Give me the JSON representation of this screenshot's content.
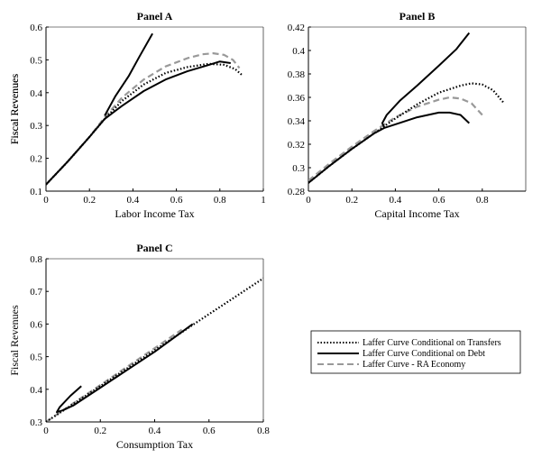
{
  "legend": [
    {
      "label": "Laffer Curve Conditional on Transfers",
      "style": "dotted",
      "color": "#000000"
    },
    {
      "label": "Laffer Curve Conditional on Debt",
      "style": "solid",
      "color": "#000000"
    },
    {
      "label": "Laffer Curve - RA Economy",
      "style": "dashed",
      "color": "#999999"
    }
  ],
  "chart_data": [
    {
      "type": "line",
      "title": "Panel A",
      "xlabel": "Labor Income Tax",
      "ylabel": "Fiscal Revenues",
      "xlim": [
        0,
        1
      ],
      "ylim": [
        0.1,
        0.6
      ],
      "xticks": [
        "0",
        "0.2",
        "0.4",
        "0.6",
        "0.8",
        "1"
      ],
      "yticks": [
        "0.1",
        "0.2",
        "0.3",
        "0.4",
        "0.5",
        "0.6"
      ],
      "series": [
        {
          "name": "Laffer Curve Conditional on Transfers",
          "style": "dotted",
          "x": [
            0.0,
            0.1,
            0.2,
            0.27,
            0.35,
            0.45,
            0.55,
            0.65,
            0.75,
            0.82,
            0.87,
            0.9
          ],
          "y": [
            0.12,
            0.19,
            0.265,
            0.32,
            0.375,
            0.425,
            0.46,
            0.478,
            0.488,
            0.485,
            0.472,
            0.455
          ]
        },
        {
          "name": "Laffer Curve Conditional on Debt",
          "style": "solid",
          "x": [
            0.0,
            0.1,
            0.2,
            0.27,
            0.35,
            0.45,
            0.55,
            0.65,
            0.75,
            0.8,
            0.85,
            0.27,
            0.32,
            0.38,
            0.43,
            0.49
          ],
          "y": [
            0.12,
            0.19,
            0.265,
            0.32,
            0.36,
            0.405,
            0.44,
            0.465,
            0.485,
            0.495,
            0.49,
            0.33,
            0.39,
            0.45,
            0.51,
            0.58
          ],
          "segments": [
            [
              0,
              11
            ],
            [
              11,
              16
            ]
          ]
        },
        {
          "name": "Laffer Curve - RA Economy",
          "style": "dashed",
          "x": [
            0.0,
            0.1,
            0.2,
            0.27,
            0.35,
            0.45,
            0.55,
            0.65,
            0.72,
            0.77,
            0.82,
            0.86,
            0.89
          ],
          "y": [
            0.12,
            0.19,
            0.265,
            0.325,
            0.385,
            0.44,
            0.48,
            0.505,
            0.517,
            0.52,
            0.515,
            0.5,
            0.475
          ]
        }
      ]
    },
    {
      "type": "line",
      "title": "Panel B",
      "xlabel": "Capital Income Tax",
      "ylabel": "Fiscal Revenues",
      "xlim": [
        0,
        1
      ],
      "ylim": [
        0.28,
        0.42
      ],
      "xticks": [
        "0",
        "0.2",
        "0.4",
        "0.6",
        "0.8"
      ],
      "yticks": [
        "0.28",
        "0.3",
        "0.32",
        "0.34",
        "0.36",
        "0.38",
        "0.4",
        "0.42"
      ],
      "series": [
        {
          "name": "Laffer Curve Conditional on Transfers",
          "style": "dotted",
          "x": [
            0.0,
            0.1,
            0.2,
            0.3,
            0.4,
            0.5,
            0.6,
            0.7,
            0.75,
            0.8,
            0.85,
            0.9
          ],
          "y": [
            0.287,
            0.302,
            0.316,
            0.329,
            0.342,
            0.354,
            0.364,
            0.37,
            0.372,
            0.371,
            0.366,
            0.355
          ]
        },
        {
          "name": "Laffer Curve Conditional on Debt",
          "style": "solid",
          "x": [
            0.0,
            0.1,
            0.2,
            0.3,
            0.35,
            0.4,
            0.5,
            0.6,
            0.65,
            0.7,
            0.74,
            0.35,
            0.34,
            0.36,
            0.42,
            0.5,
            0.6,
            0.68,
            0.74
          ],
          "y": [
            0.287,
            0.302,
            0.316,
            0.329,
            0.334,
            0.337,
            0.343,
            0.347,
            0.347,
            0.345,
            0.338,
            0.334,
            0.338,
            0.345,
            0.357,
            0.37,
            0.387,
            0.401,
            0.415
          ],
          "segments": [
            [
              0,
              11
            ],
            [
              11,
              19
            ]
          ]
        },
        {
          "name": "Laffer Curve - RA Economy",
          "style": "dashed",
          "x": [
            0.0,
            0.1,
            0.2,
            0.3,
            0.4,
            0.5,
            0.6,
            0.65,
            0.7,
            0.75,
            0.8
          ],
          "y": [
            0.289,
            0.304,
            0.318,
            0.331,
            0.343,
            0.352,
            0.358,
            0.36,
            0.359,
            0.355,
            0.345
          ]
        }
      ]
    },
    {
      "type": "line",
      "title": "Panel C",
      "xlabel": "Consumption Tax",
      "ylabel": "Fiscal Revenues",
      "xlim": [
        0,
        0.8
      ],
      "ylim": [
        0.3,
        0.8
      ],
      "xticks": [
        "0",
        "0.2",
        "0.4",
        "0.6",
        "0.8"
      ],
      "yticks": [
        "0.3",
        "0.4",
        "0.5",
        "0.6",
        "0.7",
        "0.8"
      ],
      "series": [
        {
          "name": "Laffer Curve Conditional on Transfers",
          "style": "dotted",
          "x": [
            0.0,
            0.2,
            0.4,
            0.6,
            0.8
          ],
          "y": [
            0.3,
            0.41,
            0.52,
            0.63,
            0.74
          ]
        },
        {
          "name": "Laffer Curve Conditional on Debt",
          "style": "solid",
          "x": [
            0.13,
            0.09,
            0.05,
            0.04,
            0.06,
            0.1,
            0.2,
            0.3,
            0.4,
            0.54
          ],
          "y": [
            0.41,
            0.38,
            0.345,
            0.33,
            0.335,
            0.35,
            0.405,
            0.46,
            0.515,
            0.6
          ]
        },
        {
          "name": "Laffer Curve - RA Economy",
          "style": "dashed",
          "x": [
            0.0,
            0.1,
            0.2,
            0.3,
            0.4,
            0.5
          ],
          "y": [
            0.3,
            0.357,
            0.413,
            0.47,
            0.526,
            0.583
          ]
        }
      ]
    }
  ]
}
